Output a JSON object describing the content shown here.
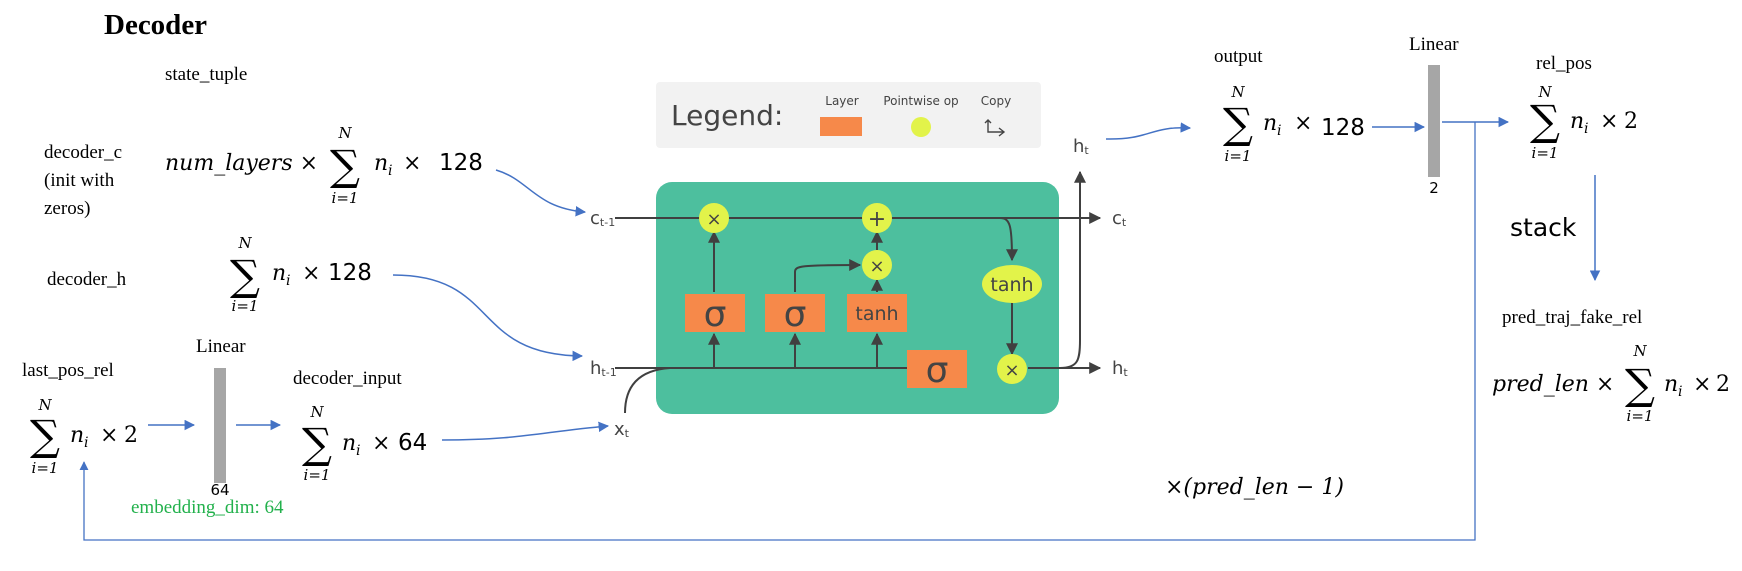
{
  "title": "Decoder",
  "labels": {
    "state_tuple": "state_tuple",
    "decoder_c": [
      "decoder_c",
      "(init with",
      "zeros)"
    ],
    "decoder_h": "decoder_h",
    "last_pos_rel": "last_pos_rel",
    "linear1": "Linear",
    "linear1_dim": "64",
    "embedding_dim": "embedding_dim: 64",
    "decoder_input": "decoder_input",
    "output": "output",
    "linear2": "Linear",
    "linear2_dim": "2",
    "rel_pos": "rel_pos",
    "stack": "stack",
    "pred_traj_fake_rel": "pred_traj_fake_rel",
    "loop": "×(pred_len − 1)"
  },
  "formulas": {
    "decoder_c_prefix": "num_layers ×",
    "sum_sign": "∑",
    "sum_top": "N",
    "sum_bottom": "i=1",
    "ni": "n",
    "ni_sub": "i",
    "times": "×",
    "c_dim": "128",
    "h_dim": "128",
    "last_dim": "2",
    "input_dim": "64",
    "output_dim": "128",
    "rel_dim": "2",
    "pred_prefix": "pred_len ×",
    "pred_dim": "2"
  },
  "legend": {
    "title": "Legend:",
    "layer": "Layer",
    "pointwise": "Pointwise op",
    "copy": "Copy"
  },
  "lstm": {
    "c_prev": "c",
    "c_prev_sub": "t-1",
    "c_next": "c",
    "c_next_sub": "t",
    "h_prev": "h",
    "h_prev_sub": "t-1",
    "h_next": "h",
    "h_next_sub": "t",
    "h_top": "h",
    "h_top_sub": "t",
    "x": "x",
    "x_sub": "t",
    "sigma": "σ",
    "tanh": "tanh",
    "mult": "×",
    "plus": "+"
  },
  "colors": {
    "cell": "#4dbf9e",
    "layer": "#f6894a",
    "pointwise": "#e2f34a",
    "arrow_blue": "#4472c4",
    "green_text": "#22b14c",
    "linear_bar": "#a6a6a6",
    "legend_bg": "#f2f2f2"
  }
}
